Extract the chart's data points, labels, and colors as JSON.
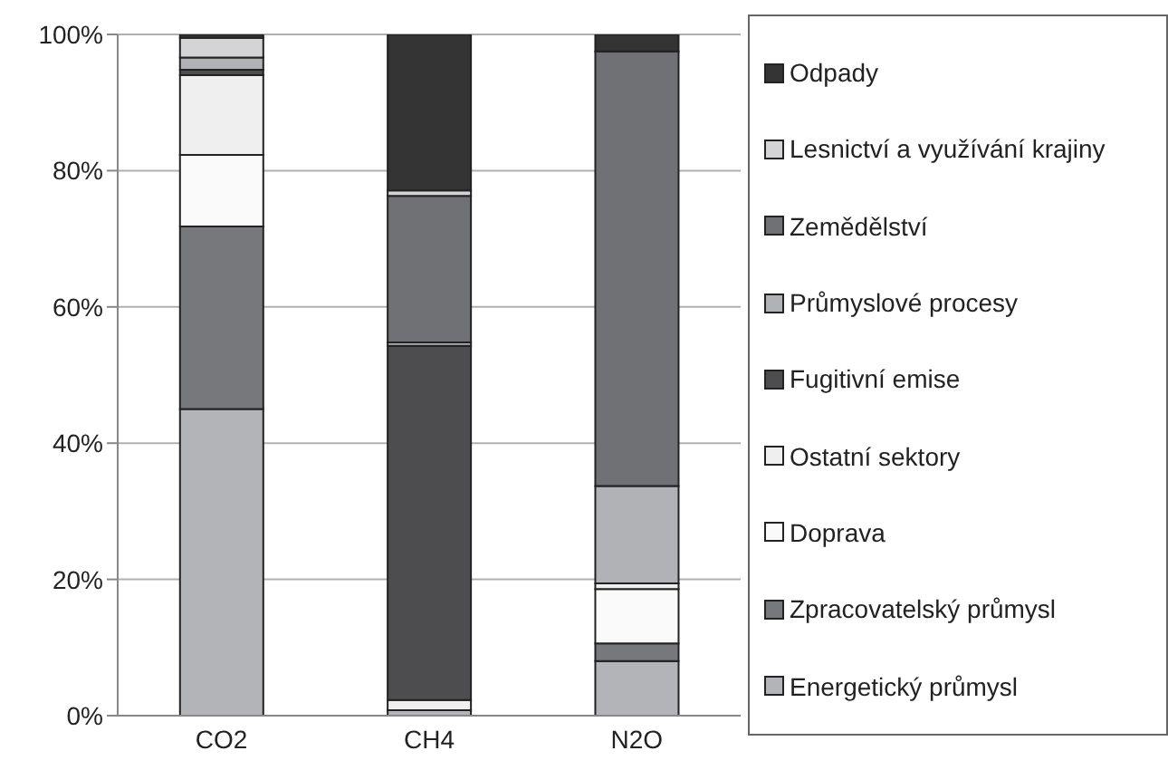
{
  "chart_data": {
    "type": "bar",
    "stacked": true,
    "categories": [
      "CO2",
      "CH4",
      "N2O"
    ],
    "series": [
      {
        "name": "Energetický průmysl",
        "color": "#b3b4b7",
        "values": [
          45,
          0.8,
          8
        ]
      },
      {
        "name": "Zpracovatelský průmysl",
        "color": "#77787b",
        "values": [
          26.8,
          null,
          2.6
        ]
      },
      {
        "name": "Doprava",
        "color": "#fafafa",
        "values": [
          10.5,
          null,
          8
        ]
      },
      {
        "name": "Ostatní sektory",
        "color": "#efefef",
        "values": [
          11.7,
          1.5,
          0.8
        ]
      },
      {
        "name": "Fugitivní emise",
        "color": "#4d4d4f",
        "values": [
          0.8,
          52,
          0
        ]
      },
      {
        "name": "Průmyslové procesy",
        "color": "#b1b2b5",
        "values": [
          1.8,
          0.5,
          14.3
        ]
      },
      {
        "name": "Zemědělství",
        "color": "#707174",
        "values": [
          0,
          21.5,
          63.8
        ]
      },
      {
        "name": "Lesnictví a využívání krajiny",
        "color": "#d4d4d6",
        "values": [
          2.9,
          0.8,
          0
        ]
      },
      {
        "name": "Odpady",
        "color": "#333333",
        "values": [
          0.5,
          22.9,
          2.5
        ]
      }
    ],
    "ylim": [
      0,
      100
    ],
    "yticks": [
      {
        "value": 0,
        "label": "0%"
      },
      {
        "value": 20,
        "label": "20%"
      },
      {
        "value": 40,
        "label": "40%"
      },
      {
        "value": 60,
        "label": "60%"
      },
      {
        "value": 80,
        "label": "80%"
      },
      {
        "value": 100,
        "label": "100%"
      }
    ],
    "grid": "y",
    "legend": "right"
  }
}
